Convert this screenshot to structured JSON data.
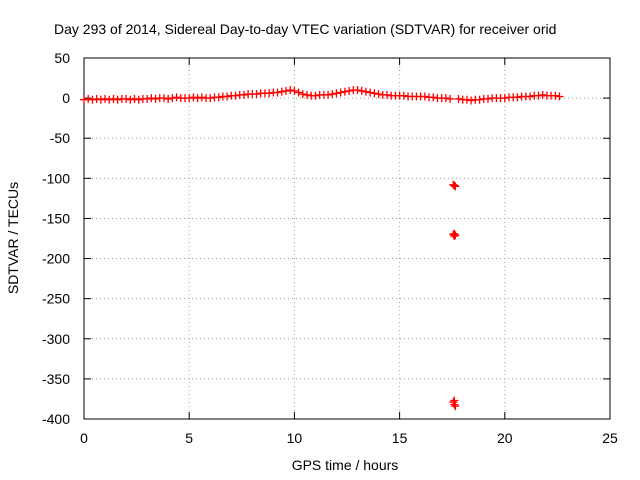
{
  "chart_data": {
    "type": "scatter",
    "title": "Day 293 of 2014, Sidereal Day-to-day VTEC variation (SDTVAR) for receiver orid",
    "xlabel": "GPS time / hours",
    "ylabel": "SDTVAR / TECUs",
    "xlim": [
      0,
      25
    ],
    "ylim": [
      -400,
      50
    ],
    "xticks": [
      0,
      5,
      10,
      15,
      20,
      25
    ],
    "yticks": [
      50,
      0,
      -50,
      -100,
      -150,
      -200,
      -250,
      -300,
      -350,
      -400
    ],
    "xtick_labels": [
      "0",
      "5",
      "10",
      "15",
      "20",
      "25"
    ],
    "ytick_labels": [
      "50",
      "0",
      "-50",
      "-100",
      "-150",
      "-200",
      "-250",
      "-300",
      "-350",
      "-400"
    ],
    "grid": true,
    "marker": "plus",
    "series": [
      {
        "name": "SDTVAR",
        "color": "#ff0000",
        "points": [
          [
            0.0,
            -2
          ],
          [
            0.2,
            -1
          ],
          [
            0.4,
            -2
          ],
          [
            0.6,
            -1
          ],
          [
            0.8,
            -2
          ],
          [
            1.0,
            -1
          ],
          [
            1.2,
            -2
          ],
          [
            1.4,
            -1
          ],
          [
            1.6,
            -2
          ],
          [
            1.8,
            -1
          ],
          [
            2.0,
            -1
          ],
          [
            2.2,
            -2
          ],
          [
            2.4,
            -1
          ],
          [
            2.6,
            -2
          ],
          [
            2.8,
            -1
          ],
          [
            3.0,
            -1
          ],
          [
            3.2,
            0
          ],
          [
            3.4,
            -1
          ],
          [
            3.6,
            0
          ],
          [
            3.8,
            0
          ],
          [
            4.0,
            -1
          ],
          [
            4.2,
            0
          ],
          [
            4.4,
            1
          ],
          [
            4.6,
            0
          ],
          [
            4.8,
            0
          ],
          [
            5.0,
            0
          ],
          [
            5.2,
            1
          ],
          [
            5.4,
            0
          ],
          [
            5.6,
            1
          ],
          [
            5.8,
            0
          ],
          [
            6.0,
            0
          ],
          [
            6.2,
            1
          ],
          [
            6.4,
            1
          ],
          [
            6.6,
            2
          ],
          [
            6.8,
            2
          ],
          [
            7.0,
            3
          ],
          [
            7.2,
            3
          ],
          [
            7.4,
            4
          ],
          [
            7.6,
            4
          ],
          [
            7.8,
            5
          ],
          [
            8.0,
            5
          ],
          [
            8.2,
            5
          ],
          [
            8.4,
            6
          ],
          [
            8.6,
            6
          ],
          [
            8.8,
            6
          ],
          [
            9.0,
            7
          ],
          [
            9.2,
            7
          ],
          [
            9.4,
            8
          ],
          [
            9.6,
            9
          ],
          [
            9.8,
            10
          ],
          [
            10.0,
            9
          ],
          [
            10.2,
            7
          ],
          [
            10.4,
            5
          ],
          [
            10.6,
            4
          ],
          [
            10.8,
            3
          ],
          [
            11.0,
            3
          ],
          [
            11.2,
            4
          ],
          [
            11.4,
            4
          ],
          [
            11.6,
            4
          ],
          [
            11.8,
            5
          ],
          [
            12.0,
            6
          ],
          [
            12.2,
            7
          ],
          [
            12.4,
            8
          ],
          [
            12.6,
            9
          ],
          [
            12.8,
            10
          ],
          [
            13.0,
            10
          ],
          [
            13.2,
            9
          ],
          [
            13.4,
            8
          ],
          [
            13.6,
            7
          ],
          [
            13.8,
            6
          ],
          [
            14.0,
            5
          ],
          [
            14.2,
            4
          ],
          [
            14.4,
            4
          ],
          [
            14.6,
            3
          ],
          [
            14.8,
            3
          ],
          [
            15.0,
            3
          ],
          [
            15.2,
            3
          ],
          [
            15.4,
            2
          ],
          [
            15.6,
            2
          ],
          [
            15.8,
            2
          ],
          [
            16.0,
            2
          ],
          [
            16.2,
            2
          ],
          [
            16.4,
            1
          ],
          [
            16.6,
            1
          ],
          [
            16.8,
            0
          ],
          [
            17.0,
            0
          ],
          [
            17.2,
            0
          ],
          [
            17.4,
            -1
          ],
          [
            17.8,
            -1
          ],
          [
            18.0,
            -2
          ],
          [
            18.2,
            -2
          ],
          [
            18.4,
            -3
          ],
          [
            18.6,
            -2
          ],
          [
            18.8,
            -2
          ],
          [
            19.0,
            -1
          ],
          [
            19.2,
            -1
          ],
          [
            19.4,
            0
          ],
          [
            19.6,
            0
          ],
          [
            19.8,
            0
          ],
          [
            20.0,
            0
          ],
          [
            20.2,
            1
          ],
          [
            20.4,
            1
          ],
          [
            20.6,
            1
          ],
          [
            20.8,
            2
          ],
          [
            21.0,
            2
          ],
          [
            21.2,
            2
          ],
          [
            21.4,
            3
          ],
          [
            21.6,
            3
          ],
          [
            21.8,
            4
          ],
          [
            22.0,
            3
          ],
          [
            22.2,
            3
          ],
          [
            22.4,
            3
          ],
          [
            22.6,
            2
          ],
          [
            17.6,
            -109
          ],
          [
            17.65,
            -110
          ],
          [
            17.55,
            -108
          ],
          [
            17.6,
            -169
          ],
          [
            17.65,
            -171
          ],
          [
            17.55,
            -170
          ],
          [
            17.6,
            -172
          ],
          [
            17.6,
            -377
          ],
          [
            17.55,
            -379
          ],
          [
            17.6,
            -382
          ],
          [
            17.65,
            -384
          ]
        ]
      }
    ]
  }
}
